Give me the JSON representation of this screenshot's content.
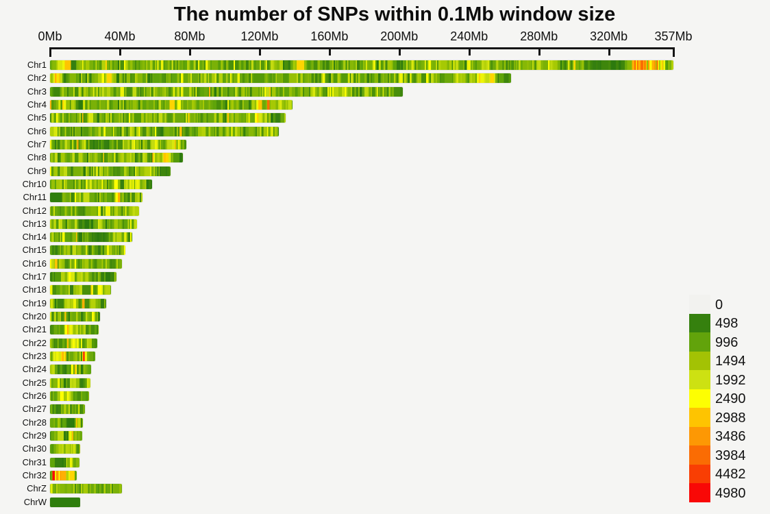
{
  "chart_data": {
    "type": "heatmap",
    "title": "The number of SNPs within 0.1Mb window size",
    "subtitle": "",
    "window_size_mb": 0.1,
    "x_axis": {
      "unit": "Mb",
      "tick_labels": [
        "0Mb",
        "40Mb",
        "80Mb",
        "120Mb",
        "160Mb",
        "200Mb",
        "240Mb",
        "280Mb",
        "320Mb",
        "357Mb"
      ],
      "tick_mb": [
        0,
        40,
        80,
        120,
        160,
        200,
        240,
        280,
        320,
        357
      ],
      "max_mb": 357
    },
    "legend": {
      "position": "bottom-right",
      "entries": [
        {
          "value": "0",
          "color": "#f2f2ef"
        },
        {
          "value": "498",
          "color": "#35800e"
        },
        {
          "value": "996",
          "color": "#62a30b"
        },
        {
          "value": "1494",
          "color": "#a3c204"
        },
        {
          "value": "1992",
          "color": "#cde112"
        },
        {
          "value": "2490",
          "color": "#fdfe02"
        },
        {
          "value": "2988",
          "color": "#fec401"
        },
        {
          "value": "3486",
          "color": "#fd9804"
        },
        {
          "value": "3984",
          "color": "#fa6c03"
        },
        {
          "value": "4482",
          "color": "#f93e03"
        },
        {
          "value": "4980",
          "color": "#f90806"
        }
      ]
    },
    "stripe_palette": {
      "dark": [
        "#2c7a0e",
        "#357f10",
        "#3e860c"
      ],
      "green": [
        "#498f0b",
        "#549a09",
        "#5fa40a"
      ],
      "mid": [
        "#6ca90a",
        "#7ab107",
        "#87b806"
      ],
      "bright": [
        "#96c005",
        "#a6c904",
        "#b5d209",
        "#c3db10"
      ],
      "yellow": [
        "#d8e70d",
        "#eef407",
        "#fdfe02"
      ],
      "gold": [
        "#fed501",
        "#fec401",
        "#feb003"
      ],
      "orange": [
        "#fd9804",
        "#fa6c03"
      ],
      "red": [
        "#f93e03",
        "#f90806"
      ],
      "flatdark": [
        "#2f7e0d"
      ]
    },
    "default_weights": {
      "dark": 0.07,
      "green": 0.26,
      "mid": 0.33,
      "bright": 0.27,
      "yellow": 0.06,
      "gold": 0.01
    },
    "feature_weights": {
      "dark": {
        "dark": 0.75,
        "green": 0.25
      },
      "green": {
        "green": 0.7,
        "mid": 0.3
      },
      "bright": {
        "bright": 0.6,
        "mid": 0.2,
        "yellow": 0.2
      },
      "yellow": {
        "yellow": 0.55,
        "bright": 0.25,
        "gold": 0.15,
        "mid": 0.05
      },
      "hot": {
        "gold": 0.35,
        "yellow": 0.25,
        "orange": 0.25,
        "bright": 0.1,
        "red": 0.05
      },
      "red": {
        "red": 0.7,
        "orange": 0.3
      },
      "flat": {
        "flatdark": 1
      },
      "uniform": {
        "mid": 0.55,
        "bright": 0.3,
        "green": 0.15
      }
    },
    "chromosomes": [
      {
        "name": "Chr1",
        "length_mb": 357,
        "seed": 101,
        "features": [
          [
            0.005,
            0.03,
            "yellow"
          ],
          [
            0.555,
            0.565,
            "dark"
          ],
          [
            0.855,
            0.915,
            "dark"
          ],
          [
            0.925,
            0.985,
            "hot"
          ]
        ]
      },
      {
        "name": "Chr2",
        "length_mb": 264,
        "seed": 102,
        "features": [
          [
            0.0,
            0.02,
            "yellow"
          ],
          [
            0.92,
            0.965,
            "yellow"
          ],
          [
            0.968,
            1,
            "dark"
          ]
        ]
      },
      {
        "name": "Chr3",
        "length_mb": 202,
        "seed": 103,
        "features": [
          [
            0.79,
            0.83,
            "bright"
          ],
          [
            0.98,
            1,
            "dark"
          ]
        ]
      },
      {
        "name": "Chr4",
        "length_mb": 139,
        "seed": 104,
        "features": [
          [
            0.893,
            0.902,
            "hot"
          ],
          [
            0.905,
            0.98,
            "bright"
          ]
        ]
      },
      {
        "name": "Chr5",
        "length_mb": 135,
        "seed": 105,
        "features": [
          [
            0.86,
            0.9,
            "yellow"
          ],
          [
            0.93,
            0.97,
            "dark"
          ]
        ]
      },
      {
        "name": "Chr6",
        "length_mb": 131,
        "seed": 106,
        "features": [
          [
            0,
            0.02,
            "bright"
          ],
          [
            0.46,
            0.49,
            "dark"
          ]
        ]
      },
      {
        "name": "Chr7",
        "length_mb": 78,
        "seed": 107,
        "features": [
          [
            0.28,
            0.45,
            "dark"
          ],
          [
            0.84,
            0.95,
            "yellow"
          ]
        ]
      },
      {
        "name": "Chr8",
        "length_mb": 76,
        "seed": 108,
        "features": [
          [
            0.02,
            0.05,
            "yellow"
          ],
          [
            0.76,
            0.9,
            "yellow"
          ],
          [
            0.95,
            1,
            "dark"
          ]
        ]
      },
      {
        "name": "Chr9",
        "length_mb": 69,
        "seed": 109,
        "features": [
          [
            0.7,
            0.86,
            "bright"
          ],
          [
            0.9,
            0.98,
            "dark"
          ]
        ]
      },
      {
        "name": "Chr10",
        "length_mb": 58.5,
        "seed": 110,
        "features": [
          [
            0.72,
            0.92,
            "bright"
          ],
          [
            0.93,
            1,
            "dark"
          ]
        ]
      },
      {
        "name": "Chr11",
        "length_mb": 53,
        "seed": 111,
        "features": [
          [
            0,
            0.1,
            "flat"
          ],
          [
            0.1,
            0.13,
            "dark"
          ]
        ]
      },
      {
        "name": "Chr12",
        "length_mb": 51,
        "seed": 112,
        "features": [
          [
            0.83,
            0.95,
            "bright"
          ]
        ]
      },
      {
        "name": "Chr13",
        "length_mb": 50,
        "seed": 113,
        "features": [
          [
            0.02,
            0.05,
            "yellow"
          ],
          [
            0.32,
            0.5,
            "dark"
          ]
        ]
      },
      {
        "name": "Chr14",
        "length_mb": 47,
        "seed": 114,
        "features": [
          [
            0.5,
            0.66,
            "dark"
          ]
        ]
      },
      {
        "name": "Chr15",
        "length_mb": 43,
        "seed": 115,
        "features": [
          [
            0.03,
            0.12,
            "dark"
          ]
        ]
      },
      {
        "name": "Chr16",
        "length_mb": 41,
        "seed": 116,
        "features": [
          [
            0.02,
            0.07,
            "yellow"
          ]
        ]
      },
      {
        "name": "Chr17",
        "length_mb": 38,
        "seed": 117,
        "features": [
          [
            0,
            0.13,
            "dark"
          ],
          [
            0.45,
            0.55,
            "bright"
          ],
          [
            0.75,
            0.95,
            "dark"
          ]
        ]
      },
      {
        "name": "Chr18",
        "length_mb": 35,
        "seed": 118,
        "features": [
          [
            0,
            0.04,
            "yellow"
          ],
          [
            0.55,
            0.7,
            "yellow"
          ],
          [
            0.71,
            0.735,
            "hot"
          ],
          [
            0.74,
            0.85,
            "yellow"
          ]
        ]
      },
      {
        "name": "Chr19",
        "length_mb": 32,
        "seed": 119,
        "features": [
          [
            0.08,
            0.2,
            "dark"
          ],
          [
            0.3,
            0.45,
            "bright"
          ]
        ]
      },
      {
        "name": "Chr20",
        "length_mb": 28.5,
        "seed": 120,
        "features": []
      },
      {
        "name": "Chr21",
        "length_mb": 28,
        "seed": 121,
        "features": [
          [
            0.3,
            0.42,
            "yellow"
          ]
        ]
      },
      {
        "name": "Chr22",
        "length_mb": 27,
        "seed": 122,
        "features": [
          [
            0.42,
            0.6,
            "yellow"
          ]
        ]
      },
      {
        "name": "Chr23",
        "length_mb": 26,
        "seed": 123,
        "features": [
          [
            0.08,
            0.35,
            "yellow"
          ],
          [
            0.7,
            0.76,
            "hot"
          ]
        ]
      },
      {
        "name": "Chr24",
        "length_mb": 23.5,
        "seed": 124,
        "features": [
          [
            0.12,
            0.5,
            "dark"
          ],
          [
            0.24,
            0.27,
            "hot"
          ],
          [
            0.5,
            0.62,
            "yellow"
          ]
        ]
      },
      {
        "name": "Chr25",
        "length_mb": 23,
        "seed": 125,
        "features": [
          [
            0.7,
            0.82,
            "dark"
          ]
        ]
      },
      {
        "name": "Chr26",
        "length_mb": 22.5,
        "seed": 126,
        "features": [
          [
            0.1,
            0.5,
            "bright"
          ]
        ]
      },
      {
        "name": "Chr27",
        "length_mb": 20,
        "seed": 127,
        "features": [
          [
            0.05,
            0.3,
            "dark"
          ]
        ]
      },
      {
        "name": "Chr28",
        "length_mb": 19,
        "seed": 128,
        "features": [
          [
            0.45,
            0.65,
            "dark"
          ]
        ]
      },
      {
        "name": "Chr29",
        "length_mb": 18.6,
        "seed": 129,
        "features": [
          [
            0.35,
            0.55,
            "dark"
          ],
          [
            0.58,
            0.7,
            "yellow"
          ]
        ]
      },
      {
        "name": "Chr30",
        "length_mb": 17.3,
        "seed": 130,
        "features": [
          [
            0.2,
            0.8,
            "bright"
          ]
        ]
      },
      {
        "name": "Chr31",
        "length_mb": 17,
        "seed": 131,
        "features": [
          [
            0.25,
            0.45,
            "dark"
          ]
        ]
      },
      {
        "name": "Chr32",
        "length_mb": 15.4,
        "seed": 132,
        "features": [
          [
            0.0,
            0.05,
            "green"
          ],
          [
            0.05,
            0.09,
            "yellow"
          ],
          [
            0.09,
            0.12,
            "red"
          ],
          [
            0.12,
            0.72,
            "hot"
          ],
          [
            0.72,
            0.85,
            "yellow"
          ],
          [
            0.85,
            1,
            "green"
          ]
        ]
      },
      {
        "name": "ChrZ",
        "length_mb": 41,
        "seed": 133,
        "features": [
          [
            0,
            0.03,
            "bright"
          ],
          [
            0.03,
            1,
            "uniform"
          ]
        ]
      },
      {
        "name": "ChrW",
        "length_mb": 17.3,
        "seed": 134,
        "features": [
          [
            0,
            1,
            "flat"
          ]
        ]
      }
    ]
  }
}
